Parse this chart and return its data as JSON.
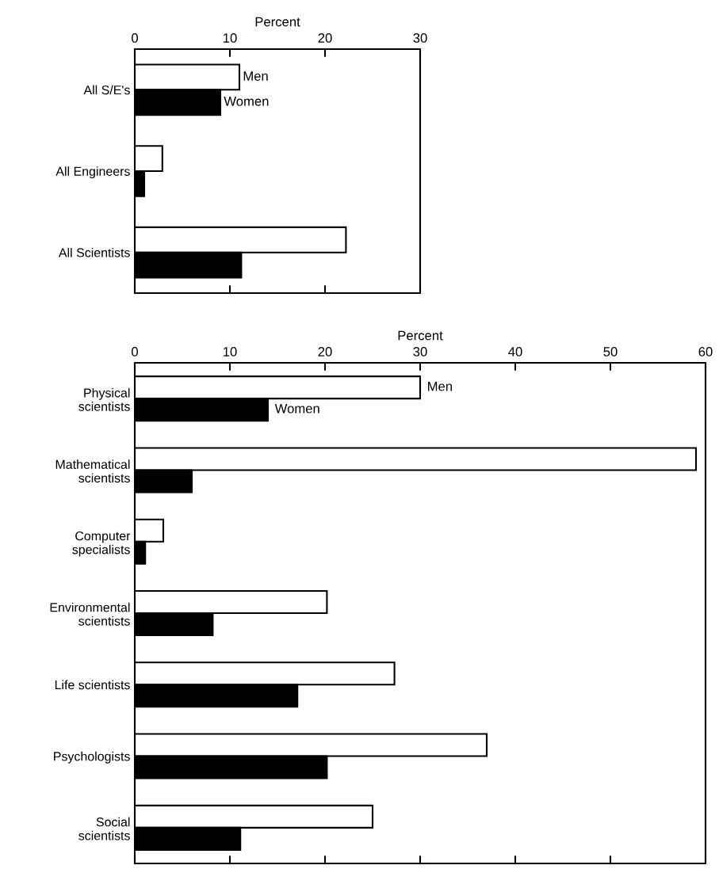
{
  "chart_data": [
    {
      "type": "bar",
      "orientation": "horizontal",
      "xlabel": "Percent",
      "categories": [
        "All S/E's",
        "All Engineers",
        "All Scientists"
      ],
      "series": [
        {
          "name": "Men",
          "color": "#ffffff",
          "values": [
            11.0,
            2.9,
            22.2
          ]
        },
        {
          "name": "Women",
          "color": "#000000",
          "values": [
            9.0,
            1.0,
            11.2
          ]
        }
      ],
      "xlim": [
        0,
        30
      ],
      "xticks": [
        0,
        10,
        20,
        30
      ],
      "legend": false,
      "grid": false
    },
    {
      "type": "bar",
      "orientation": "horizontal",
      "xlabel": "Percent",
      "categories": [
        "Physical\nscientists",
        "Mathematical\nscientists",
        "Computer\nspecialists",
        "Environmental\nscientists",
        "Life scientists",
        "Psychologists",
        "Social\nscientists"
      ],
      "series": [
        {
          "name": "Men",
          "color": "#ffffff",
          "values": [
            30,
            59,
            3,
            20.2,
            27.3,
            37,
            25
          ]
        },
        {
          "name": "Women",
          "color": "#000000",
          "values": [
            14,
            6,
            1.1,
            8.2,
            17.1,
            20.2,
            11.1
          ]
        }
      ],
      "xlim": [
        0,
        60
      ],
      "xticks": [
        0,
        10,
        20,
        30,
        40,
        50,
        60
      ],
      "legend": false,
      "grid": false
    }
  ]
}
